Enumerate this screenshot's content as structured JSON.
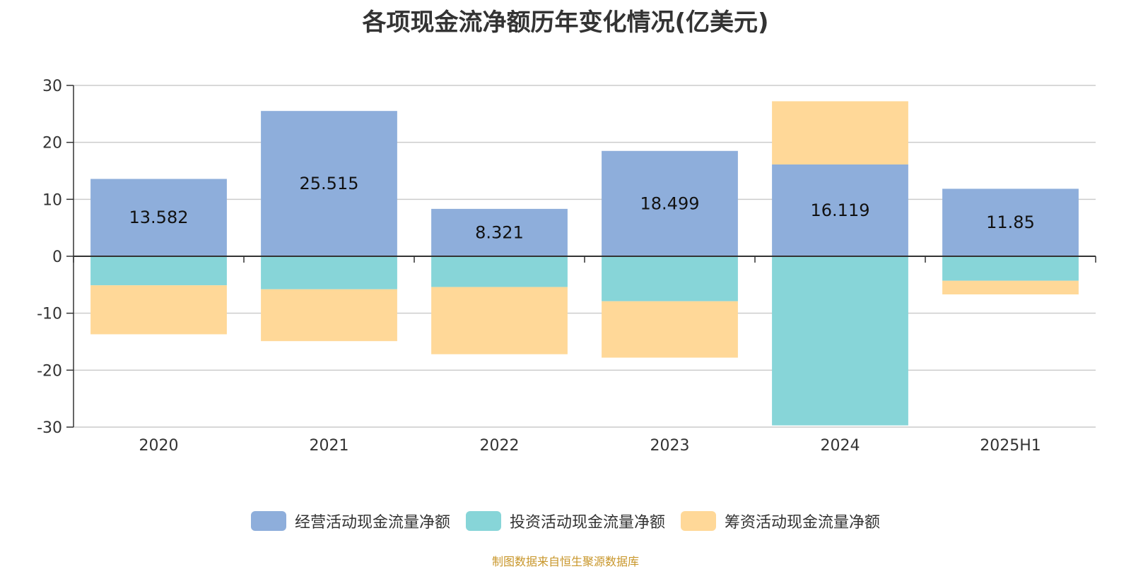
{
  "chart_data": {
    "type": "bar",
    "stacked": true,
    "title": "各项现金流净额历年变化情况(亿美元)",
    "categories": [
      "2020",
      "2021",
      "2022",
      "2023",
      "2024",
      "2025H1"
    ],
    "ylim": [
      -30,
      30
    ],
    "yticks": [
      30,
      20,
      10,
      0,
      -10,
      -20,
      -30
    ],
    "series": [
      {
        "name": "经营活动现金流量净额",
        "color": "#8eaedb",
        "values": [
          13.582,
          25.515,
          8.321,
          18.499,
          16.119,
          11.85
        ],
        "labels": [
          "13.582",
          "25.515",
          "8.321",
          "18.499",
          "16.119",
          "11.85"
        ]
      },
      {
        "name": "投资活动现金流量净额",
        "color": "#87d5d8",
        "values": [
          -5.1,
          -5.8,
          -5.4,
          -7.9,
          -29.7,
          -4.3
        ]
      },
      {
        "name": "筹资活动现金流量净额",
        "color": "#ffd898",
        "values": [
          -8.6,
          -9.1,
          -11.8,
          -9.9,
          11.1,
          -2.4
        ]
      }
    ],
    "legend_position": "bottom-center",
    "grid": true
  },
  "source": "制图数据来自恒生聚源数据库"
}
